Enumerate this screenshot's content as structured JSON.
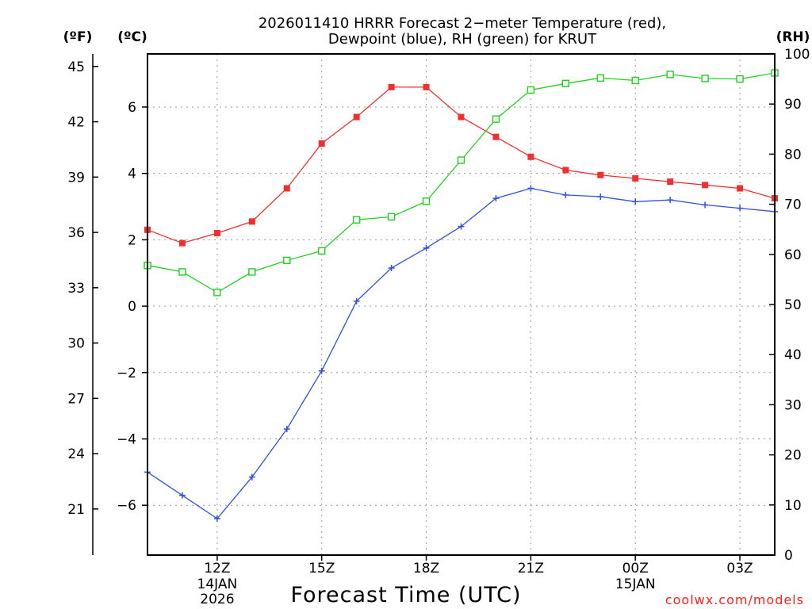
{
  "chart_data": {
    "type": "line",
    "title": "2026011410 HRRR Forecast 2−meter Temperature (red),",
    "subtitle": "Dewpoint (blue), RH (green) for KRUT",
    "xlabel": "Forecast Time (UTC)",
    "units": {
      "fahrenheit": "(ºF)",
      "celsius": "(ºC)",
      "rh": "(RH)"
    },
    "x_hours": [
      10,
      11,
      12,
      13,
      14,
      15,
      16,
      17,
      18,
      19,
      20,
      21,
      22,
      23,
      24,
      25,
      26,
      27,
      28
    ],
    "xlim": [
      10,
      28
    ],
    "x_ticks": [
      {
        "hour": 12,
        "label": "12Z",
        "date": "14JAN",
        "year": "2026"
      },
      {
        "hour": 15,
        "label": "15Z"
      },
      {
        "hour": 18,
        "label": "18Z"
      },
      {
        "hour": 21,
        "label": "21Z"
      },
      {
        "hour": 24,
        "label": "00Z",
        "date": "15JAN"
      },
      {
        "hour": 27,
        "label": "03Z"
      }
    ],
    "celsius_axis": {
      "ylim": [
        -7.5,
        7.6
      ],
      "ticks": [
        "-6",
        "-4",
        "-2",
        "0",
        "2",
        "4",
        "6"
      ]
    },
    "fahrenheit_axis": {
      "ticks": [
        "21",
        "24",
        "27",
        "30",
        "33",
        "36",
        "39",
        "42",
        "45"
      ]
    },
    "rh_axis": {
      "ylim": [
        0,
        100
      ],
      "ticks": [
        "0",
        "10",
        "20",
        "30",
        "40",
        "50",
        "60",
        "70",
        "80",
        "90",
        "100"
      ]
    },
    "series": [
      {
        "name": "Temperature",
        "axis": "celsius",
        "color": "#f03030",
        "marker": "filled-square",
        "values": [
          2.3,
          1.9,
          2.2,
          2.55,
          3.55,
          4.9,
          5.7,
          6.6,
          6.6,
          5.7,
          5.1,
          4.5,
          4.1,
          3.95,
          3.85,
          3.75,
          3.65,
          3.55,
          3.25
        ]
      },
      {
        "name": "Dewpoint",
        "axis": "celsius",
        "color": "#3050e0",
        "marker": "plus",
        "values": [
          -5.0,
          -5.7,
          -6.4,
          -5.15,
          -3.7,
          -1.95,
          0.15,
          1.15,
          1.75,
          2.4,
          3.25,
          3.55,
          3.35,
          3.3,
          3.15,
          3.2,
          3.05,
          2.95,
          2.85
        ]
      },
      {
        "name": "RH",
        "axis": "rh",
        "color": "#20d020",
        "marker": "open-square",
        "values": [
          57.8,
          56.5,
          52.4,
          56.5,
          58.8,
          60.7,
          66.9,
          67.5,
          70.6,
          78.8,
          87.0,
          92.8,
          94.1,
          95.2,
          94.7,
          95.9,
          95.1,
          95.0,
          96.2
        ]
      }
    ],
    "grid": true
  },
  "credit": "coolwx.com/models"
}
